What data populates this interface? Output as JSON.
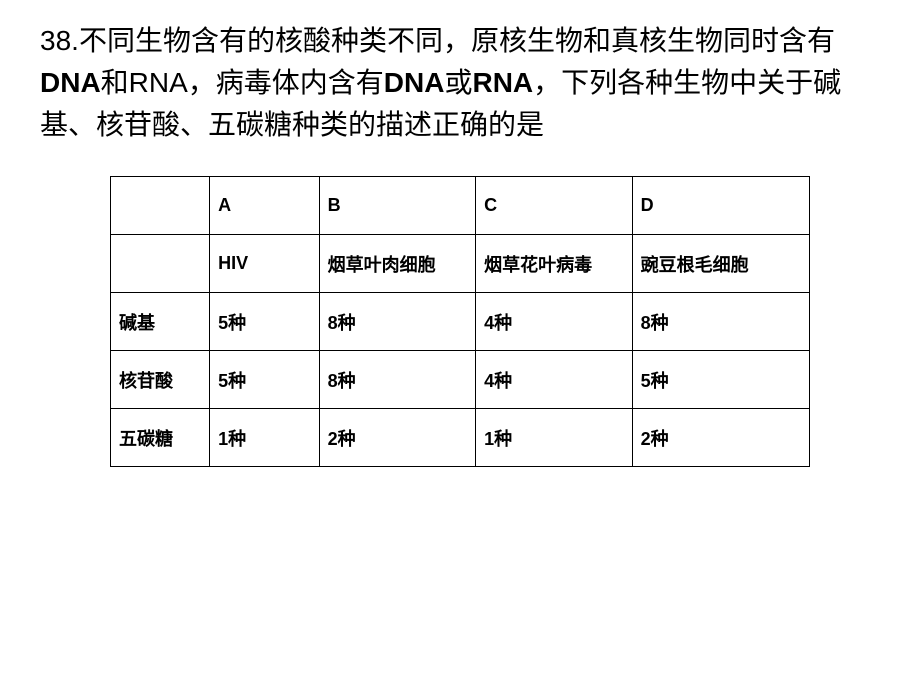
{
  "question": {
    "number": "38.",
    "text_part1": "不同生物含有的核酸种类不同，原核生物和真核生物同时含有",
    "bold1": "DNA",
    "text_part2": "和RNA，病毒体内含有",
    "bold2": "DNA",
    "text_part3": "或",
    "bold3": "RNA",
    "text_part4": "，下列各种生物中关于碱基、核苷酸、五碳糖种类的描述正确的是"
  },
  "table": {
    "headers": {
      "corner": "",
      "colA": "A",
      "colB": "B",
      "colC": "C",
      "colD": "D"
    },
    "organism_row": {
      "label": "",
      "A": "HIV",
      "B": "烟草叶肉细胞",
      "C": "烟草花叶病毒",
      "D": "豌豆根毛细胞"
    },
    "rows": [
      {
        "label": "碱基",
        "A": "5种",
        "B": "8种",
        "C": "4种",
        "D": "8种"
      },
      {
        "label": "核苷酸",
        "A": "5种",
        "B": "8种",
        "C": "4种",
        "D": "5种"
      },
      {
        "label": "五碳糖",
        "A": "1种",
        "B": "2种",
        "C": "1种",
        "D": "2种"
      }
    ]
  },
  "styles": {
    "background_color": "#ffffff",
    "text_color": "#000000",
    "border_color": "#000000",
    "question_fontsize": 28,
    "table_fontsize": 18
  }
}
